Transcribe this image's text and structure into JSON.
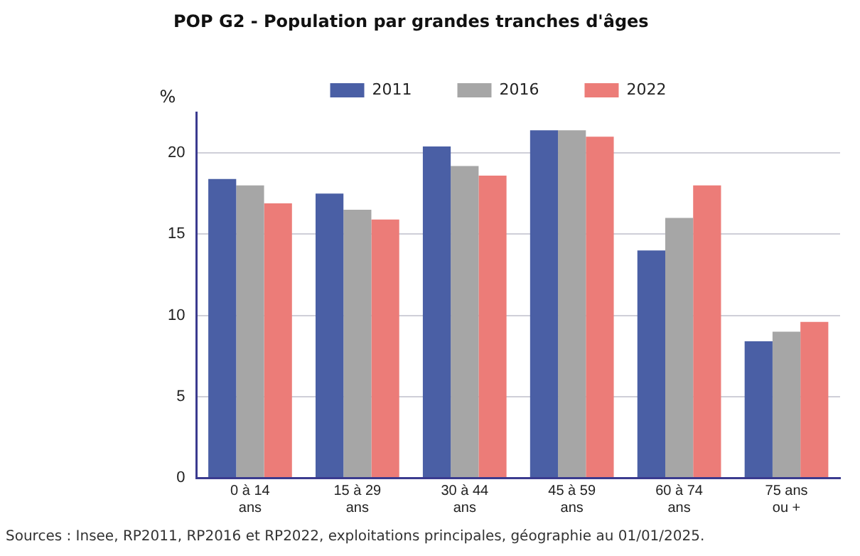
{
  "chart_data": {
    "type": "bar",
    "title": "POP G2 - Population par grandes tranches d'âges",
    "ylabel": "%",
    "categories": [
      "0 à 14 ans",
      "15 à 29 ans",
      "30 à 44 ans",
      "45 à 59 ans",
      "60 à 74 ans",
      "75 ans ou +"
    ],
    "series": [
      {
        "name": "2011",
        "color": "#4a5fa5",
        "values": [
          18.4,
          17.5,
          20.4,
          21.4,
          14.0,
          8.4
        ]
      },
      {
        "name": "2016",
        "color": "#a6a6a6",
        "values": [
          18.0,
          16.5,
          19.2,
          21.4,
          16.0,
          9.0
        ]
      },
      {
        "name": "2022",
        "color": "#ec7c78",
        "values": [
          16.9,
          15.9,
          18.6,
          21.0,
          18.0,
          9.6
        ]
      }
    ],
    "ylim": [
      0,
      22.5
    ],
    "yticks": [
      0,
      5,
      10,
      15,
      20
    ],
    "grid": "y",
    "legend": "top",
    "annotations": [
      "Sources : Insee, RP2011, RP2016 et RP2022, exploitations principales, géographie au 01/01/2025."
    ]
  }
}
